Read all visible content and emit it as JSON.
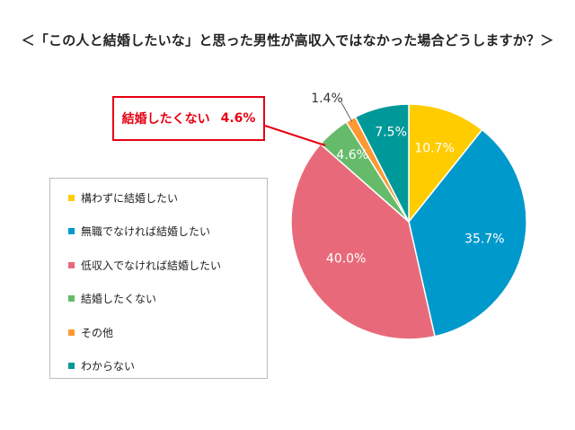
{
  "title": "＜「この人と結婚したいな」と思った男性が高収入ではなかった場合どうしますか？＞",
  "callout": {
    "label": "結婚したくない",
    "value": "4.6%"
  },
  "chart_data": {
    "type": "pie",
    "title": "＜「この人と結婚したいな」と思った男性が高収入ではなかった場合どうしますか？＞",
    "legend_position": "left",
    "start": "12 o'clock",
    "direction": "clockwise",
    "slices": [
      {
        "label": "構わずに結婚したい",
        "value": 10.7,
        "display": "10.7%",
        "color": "#ffcc00",
        "label_color": "#ffffff"
      },
      {
        "label": "無職でなければ結婚したい",
        "value": 35.7,
        "display": "35.7%",
        "color": "#0099cc",
        "label_color": "#ffffff"
      },
      {
        "label": "低収入でなければ結婚したい",
        "value": 40.0,
        "display": "40.0%",
        "color": "#e86a7a",
        "label_color": "#ffffff"
      },
      {
        "label": "結婚したくない",
        "value": 4.6,
        "display": "4.6%",
        "color": "#66bb6a",
        "label_color": "#ffffff"
      },
      {
        "label": "その他",
        "value": 1.4,
        "display": "1.4%",
        "color": "#ff9933",
        "label_color": "#333333"
      },
      {
        "label": "わからない",
        "value": 7.5,
        "display": "7.5%",
        "color": "#009999",
        "label_color": "#ffffff"
      }
    ]
  }
}
